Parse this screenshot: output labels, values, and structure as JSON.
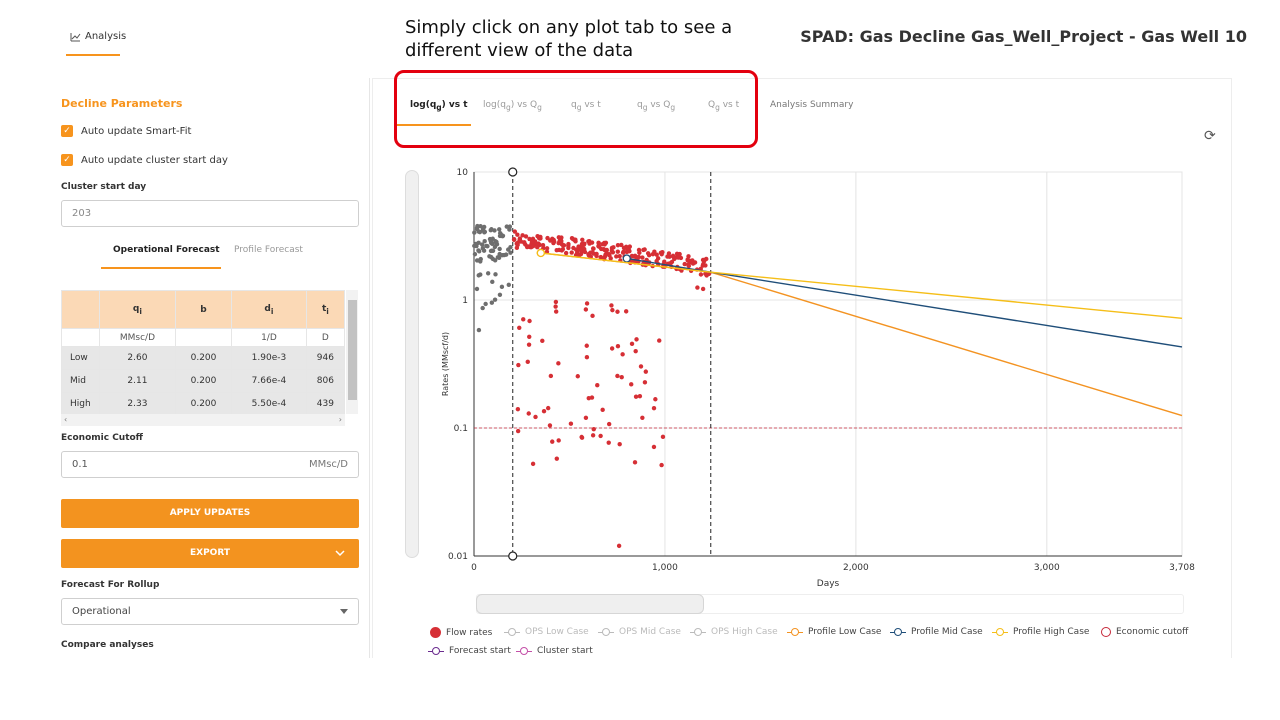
{
  "header": {
    "analysis_tab": "Analysis",
    "callout": "Simply click on any plot tab to see a different view of the data",
    "project_title": "SPAD: Gas Decline Gas_Well_Project - Gas Well 10"
  },
  "left": {
    "params_title": "Decline Parameters",
    "auto_smartfit": "Auto update Smart-Fit",
    "auto_cluster": "Auto update cluster start day",
    "cluster_label": "Cluster start day",
    "cluster_value": "203",
    "subtab_operational": "Operational Forecast",
    "subtab_profile": "Profile Forecast",
    "table": {
      "headers": [
        "",
        "qi",
        "b",
        "di",
        "ti"
      ],
      "units": [
        "",
        "MMsc/D",
        "",
        "1/D",
        "D"
      ],
      "rows": [
        [
          "Low",
          "2.60",
          "0.200",
          "1.90e-3",
          "946"
        ],
        [
          "Mid",
          "2.11",
          "0.200",
          "7.66e-4",
          "806"
        ],
        [
          "High",
          "2.33",
          "0.200",
          "5.50e-4",
          "439"
        ]
      ]
    },
    "cutoff_label": "Economic Cutoff",
    "cutoff_value": "0.1",
    "cutoff_unit": "MMsc/D",
    "apply_label": "APPLY UPDATES",
    "export_label": "EXPORT",
    "rollup_label": "Forecast For Rollup",
    "rollup_value": "Operational",
    "compare_label": "Compare analyses"
  },
  "plot_tabs": {
    "t1": "log(q",
    "t1_sub": "g",
    "t1_end": ") vs t",
    "t2": "log(q",
    "t2_sub": "g",
    "t2_mid": ") vs Q",
    "t2_sub2": "g",
    "t3": "q",
    "t3_sub": "g",
    "t3_end": " vs t",
    "t4": "q",
    "t4_sub": "g",
    "t4_mid": " vs Q",
    "t4_sub2": "g",
    "t5": "Q",
    "t5_sub": "g",
    "t5_end": " vs t",
    "t6": "Analysis Summary"
  },
  "colors": {
    "accent": "#f7941d",
    "flow": "#d62f35",
    "history": "#6e6e6e",
    "low": "#f39322",
    "mid": "#1f4e79",
    "high": "#f5be18",
    "cutoff": "#c6283a"
  },
  "chart_data": {
    "type": "scatter",
    "xlabel": "Days",
    "ylabel": "Rates (MMscf/d)",
    "x_ticks": [
      "0",
      "1,000",
      "2,000",
      "3,000",
      "3,708"
    ],
    "y_ticks": [
      "10",
      "1",
      "0.1",
      "0.01"
    ],
    "xlim": [
      0,
      3708
    ],
    "ylim": [
      0.01,
      10
    ],
    "y_scale": "log",
    "cluster_start_day": 203,
    "forecast_start_day": 1240,
    "economic_cutoff": 0.1,
    "series": [
      {
        "name": "Profile Low Case",
        "x": [
          350,
          1240,
          3708
        ],
        "y": [
          2.33,
          1.65,
          0.125
        ]
      },
      {
        "name": "Profile Mid Case",
        "x": [
          800,
          1240,
          3708
        ],
        "y": [
          2.11,
          1.65,
          0.43
        ]
      },
      {
        "name": "Profile High Case",
        "x": [
          350,
          1240,
          3708
        ],
        "y": [
          2.33,
          1.65,
          0.72
        ]
      }
    ],
    "legend": [
      "Flow rates",
      "OPS Low Case",
      "OPS Mid Case",
      "OPS High Case",
      "Profile Low Case",
      "Profile Mid Case",
      "Profile High Case",
      "Economic cutoff",
      "Forecast start",
      "Cluster start"
    ]
  }
}
